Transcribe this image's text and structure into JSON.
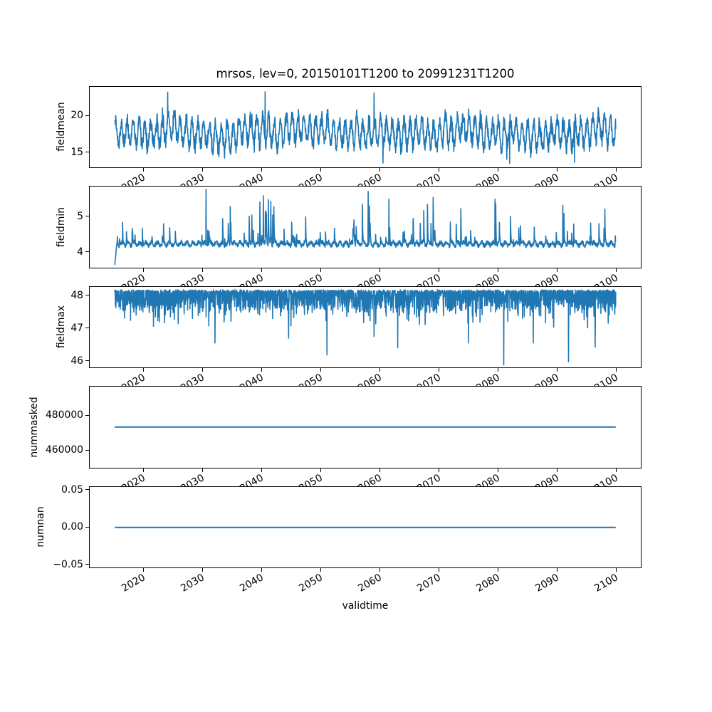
{
  "figure": {
    "title": "mrsos, lev=0, 20150101T1200 to 20991231T1200",
    "background": "#ffffff",
    "text_color": "#000000",
    "line_color": "#1f77b4"
  },
  "x_axis": {
    "label": "validtime",
    "lim": [
      2010.75,
      2104.25
    ],
    "ticks": [
      2020,
      2030,
      2040,
      2050,
      2060,
      2070,
      2080,
      2090,
      2100
    ],
    "tick_labels": [
      "2020",
      "2030",
      "2040",
      "2050",
      "2060",
      "2070",
      "2080",
      "2090",
      "2100"
    ],
    "tick_rotation_deg": 30,
    "data_x_range": [
      2015,
      2100
    ]
  },
  "chart_data": [
    {
      "type": "line",
      "name": "fieldmean",
      "ylabel": "fieldmean",
      "ylim": [
        12.86,
        24.03
      ],
      "yticks": [
        15,
        20
      ],
      "ytick_labels": [
        "15",
        "20"
      ],
      "summary": {
        "approx_mean": 17.7,
        "approx_min": 13.3,
        "approx_max": 23.4,
        "pattern": "dense noisy annual oscillation over 2015-2100"
      },
      "gen": {
        "kind": "noisy_band",
        "n": 2300,
        "base": 17.75,
        "cycles": 85,
        "amp_range": [
          1.0,
          2.5
        ],
        "noise": 1.0,
        "seed": 11,
        "extremes": [
          {
            "x": 2024,
            "v": 23.3
          },
          {
            "x": 2040.5,
            "v": 23.35
          },
          {
            "x": 2059,
            "v": 23.2
          },
          {
            "x": 2060.5,
            "v": 13.5
          },
          {
            "x": 2082,
            "v": 13.45
          },
          {
            "x": 2093,
            "v": 13.6
          }
        ],
        "clamp": [
          13.2,
          23.45
        ]
      }
    },
    {
      "type": "line",
      "name": "fieldmin",
      "ylabel": "fieldmin",
      "ylim": [
        3.547,
        5.861
      ],
      "yticks": [
        4,
        5
      ],
      "ytick_labels": [
        "4",
        "5"
      ],
      "summary": {
        "baseline": 4.22,
        "approx_min": 3.62,
        "approx_max": 5.78,
        "pattern": "baseline ~4.2 with sharp upward spikes, initial dip at 2015"
      },
      "gen": {
        "kind": "spiky_up",
        "n": 2300,
        "base": 4.22,
        "noise": 0.06,
        "spike_prob": 0.042,
        "spike_min": 0.18,
        "spike_max": 1.3,
        "decay": 0.5,
        "start_value": 3.62,
        "seed": 22,
        "peaks": [
          {
            "x": 2030.5,
            "v": 5.78
          },
          {
            "x": 2040.2,
            "v": 5.6
          },
          {
            "x": 2058,
            "v": 5.72
          },
          {
            "x": 2061.5,
            "v": 5.5
          },
          {
            "x": 2069,
            "v": 5.55
          },
          {
            "x": 2079.5,
            "v": 5.5
          },
          {
            "x": 2091,
            "v": 5.32
          }
        ],
        "clamp": [
          3.58,
          5.82
        ]
      }
    },
    {
      "type": "line",
      "name": "fieldmax",
      "ylabel": "fieldmax",
      "ylim": [
        45.783,
        48.283
      ],
      "yticks": [
        46,
        47,
        48
      ],
      "ytick_labels": [
        "46",
        "47",
        "48"
      ],
      "summary": {
        "baseline": 48.15,
        "approx_min": 45.87,
        "approx_max": 48.2,
        "pattern": "dense band near 48.1 with frequent downward spikes"
      },
      "gen": {
        "kind": "spiky_down",
        "n": 2600,
        "base": 48.16,
        "hair": 0.55,
        "mid_prob": 0.3,
        "mid_extra": 0.5,
        "noise": 0.07,
        "seed": 33,
        "deep": [
          {
            "x": 2032,
            "v": 46.55
          },
          {
            "x": 2044.5,
            "v": 46.7
          },
          {
            "x": 2051,
            "v": 46.18
          },
          {
            "x": 2059,
            "v": 46.75
          },
          {
            "x": 2063,
            "v": 46.4
          },
          {
            "x": 2075,
            "v": 46.55
          },
          {
            "x": 2081,
            "v": 45.87
          },
          {
            "x": 2086,
            "v": 46.55
          },
          {
            "x": 2092,
            "v": 45.97
          },
          {
            "x": 2096.5,
            "v": 46.42
          }
        ],
        "clamp": [
          45.85,
          48.23
        ]
      }
    },
    {
      "type": "line",
      "name": "nummasked",
      "ylabel": "nummasked",
      "ylim": [
        449669,
        497003
      ],
      "yticks": [
        460000,
        480000
      ],
      "ytick_labels": [
        "460000",
        "480000"
      ],
      "summary": {
        "constant_value": 473336
      },
      "gen": {
        "kind": "constant",
        "value": 473336
      }
    },
    {
      "type": "line",
      "name": "numnan",
      "ylabel": "numnan",
      "ylim": [
        -0.055,
        0.055
      ],
      "yticks": [
        -0.05,
        0,
        0.05
      ],
      "ytick_labels": [
        "−0.05",
        "0.00",
        "0.05"
      ],
      "summary": {
        "constant_value": 0
      },
      "gen": {
        "kind": "constant",
        "value": 0
      }
    }
  ]
}
